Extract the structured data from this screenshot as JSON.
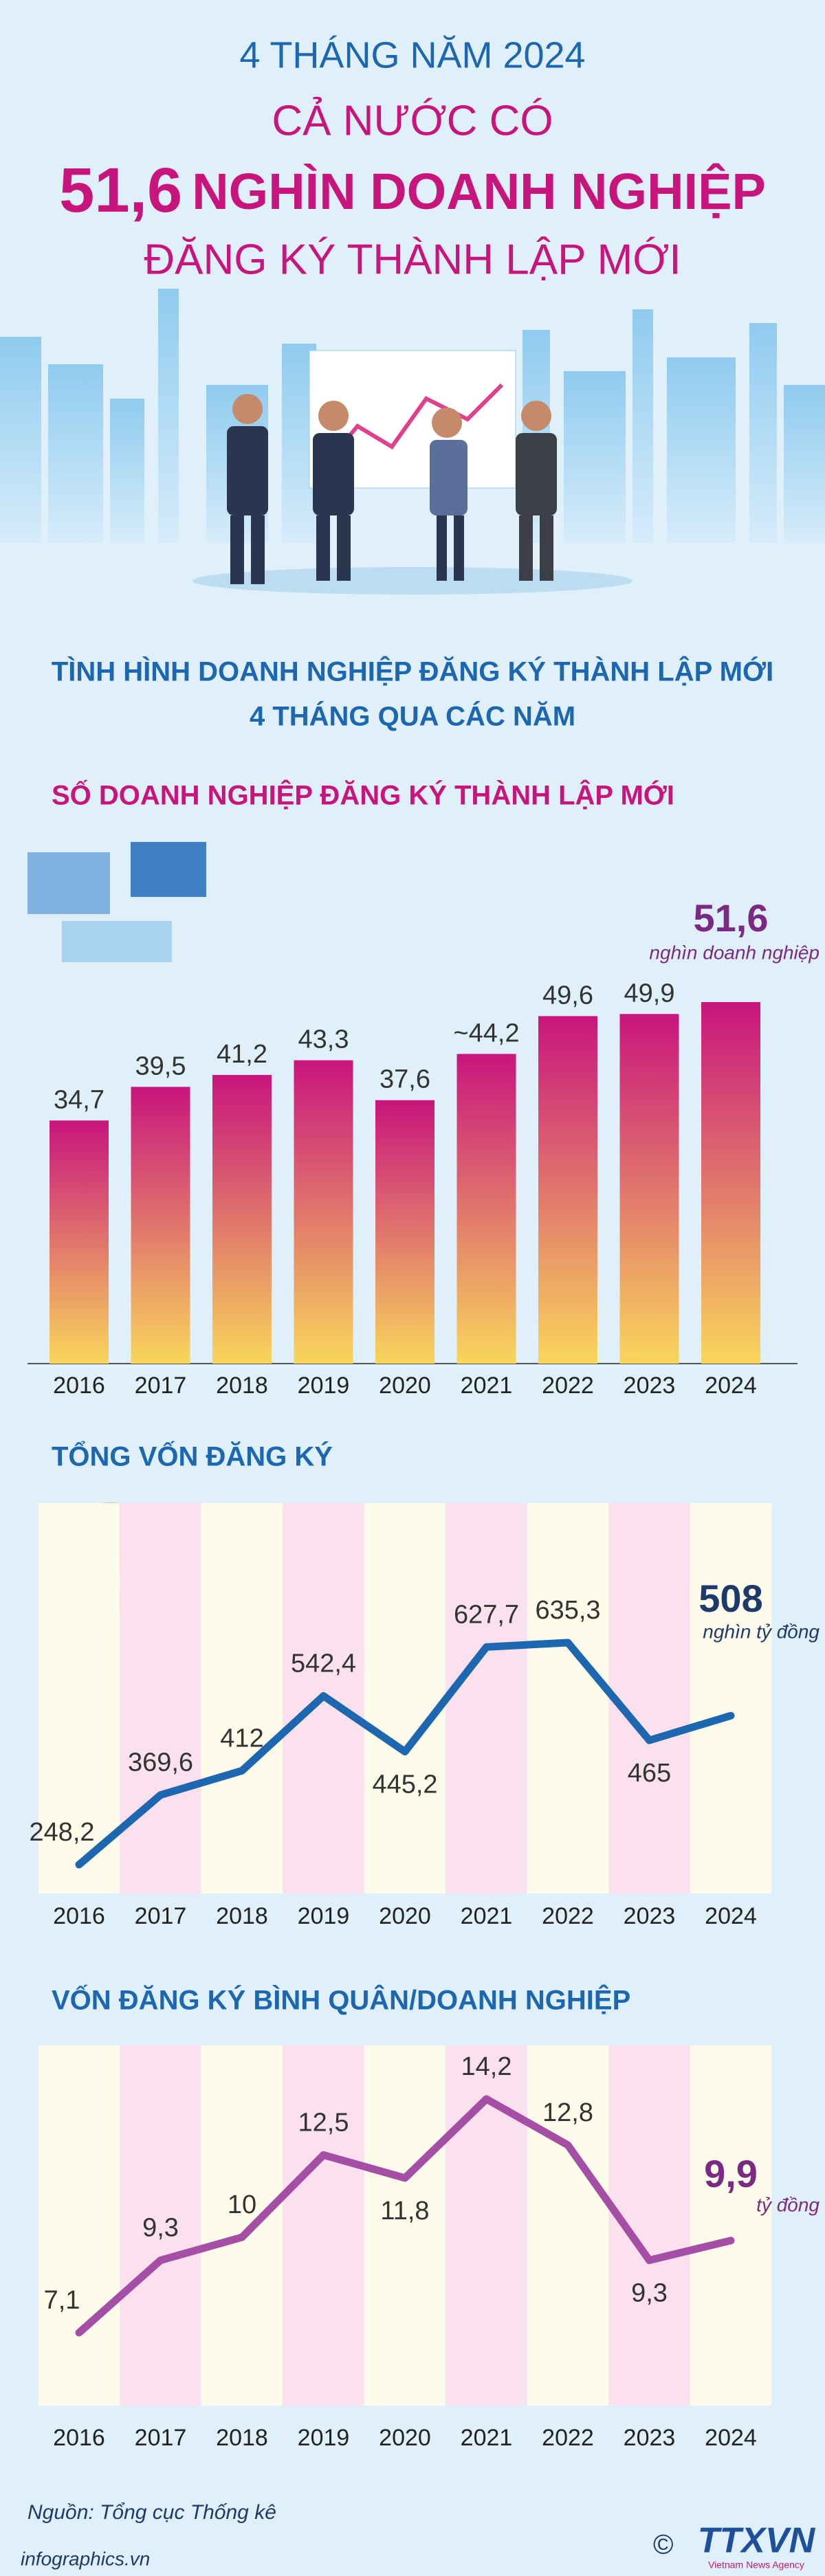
{
  "header": {
    "line1": "4 THÁNG NĂM 2024",
    "line2": "CẢ NƯỚC CÓ",
    "big_number": "51,6",
    "line3": "NGHÌN DOANH NGHIỆP",
    "line4": "ĐĂNG KÝ THÀNH LẬP MỚI"
  },
  "section_title": [
    "TÌNH HÌNH DOANH NGHIỆP ĐĂNG KÝ THÀNH LẬP MỚI",
    "4 THÁNG QUA CÁC NĂM"
  ],
  "chart_data": [
    {
      "type": "bar",
      "title": "SỐ DOANH NGHIỆP ĐĂNG KÝ THÀNH LẬP MỚI",
      "categories": [
        "2016",
        "2017",
        "2018",
        "2019",
        "2020",
        "2021",
        "2022",
        "2023",
        "2024"
      ],
      "values": [
        34.7,
        39.5,
        41.2,
        43.3,
        37.6,
        44.2,
        49.6,
        49.9,
        51.6
      ],
      "value_labels": [
        "34,7",
        "39,5",
        "41,2",
        "43,3",
        "37,6",
        "~44,2",
        "49,6",
        "49,9",
        "51,6"
      ],
      "unit": "nghìn doanh nghiệp",
      "color": "#c8157d",
      "gradient_to": "#f9d65c"
    },
    {
      "type": "line",
      "title": "TỔNG VỐN ĐĂNG KÝ",
      "categories": [
        "2016",
        "2017",
        "2018",
        "2019",
        "2020",
        "2021",
        "2022",
        "2023",
        "2024"
      ],
      "values": [
        248.2,
        369.6,
        412,
        542.4,
        445.2,
        627.7,
        635.3,
        465,
        508
      ],
      "value_labels": [
        "248,2",
        "369,6",
        "412",
        "542,4",
        "445,2",
        "627,7",
        "635,3",
        "465",
        "508"
      ],
      "unit": "nghìn tỷ đồng",
      "color": "#1d67b1"
    },
    {
      "type": "line",
      "title": "VỐN ĐĂNG KÝ BÌNH QUÂN/DOANH NGHIỆP",
      "categories": [
        "2016",
        "2017",
        "2018",
        "2019",
        "2020",
        "2021",
        "2022",
        "2023",
        "2024"
      ],
      "values": [
        7.1,
        9.3,
        10,
        12.5,
        11.8,
        14.2,
        12.8,
        9.3,
        9.9
      ],
      "value_labels": [
        "7,1",
        "9,3",
        "10",
        "12,5",
        "11,8",
        "14,2",
        "12,8",
        "9,3",
        "9,9"
      ],
      "unit": "tỷ đồng",
      "color": "#a44fa5"
    }
  ],
  "footer": {
    "source": "Nguồn: Tổng cục Thống kê",
    "site": "infographics.vn",
    "copyright": "©",
    "logo": "TTXVN",
    "logo_sub": "Vietnam News Agency"
  }
}
